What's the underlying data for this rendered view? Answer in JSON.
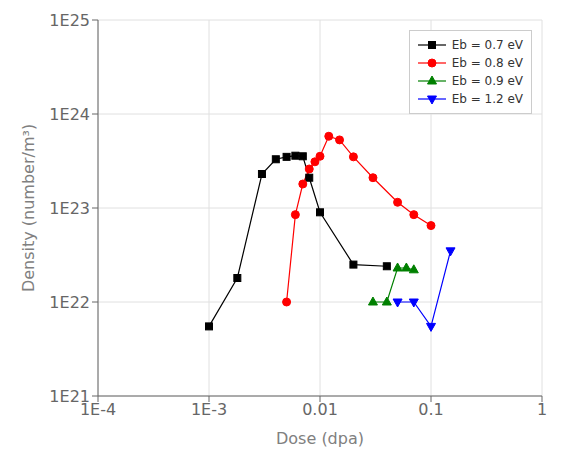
{
  "chart_data": {
    "type": "line",
    "xlabel": "Dose (dpa)",
    "ylabel": "Density (number/m³)",
    "log": true,
    "grid": true,
    "legend": "upper right",
    "xlim": [
      0.0001,
      1
    ],
    "ylim": [
      1e+21,
      1e+25
    ],
    "xticks": [
      {
        "value": 0.0001,
        "label": "1E-4"
      },
      {
        "value": 0.001,
        "label": "1E-3"
      },
      0.01,
      0.1,
      1
    ],
    "yticks": [
      {
        "value": 1e+21,
        "label": "1E21"
      },
      {
        "value": 1e+22,
        "label": "1E22"
      },
      {
        "value": 1e+23,
        "label": "1E23"
      },
      {
        "value": 1e+24,
        "label": "1E24"
      },
      {
        "value": 1e+25,
        "label": "1E25"
      }
    ],
    "series": [
      {
        "name": "Eb = 0.7 eV",
        "color": "black",
        "marker": "square",
        "x": [
          0.001,
          0.0018,
          0.003,
          0.004,
          0.005,
          0.006,
          0.007,
          0.008,
          0.01,
          0.02,
          0.04
        ],
        "values": [
          5.5e+21,
          1.8e+22,
          2.3e+23,
          3.3e+23,
          3.5e+23,
          3.6e+23,
          3.55e+23,
          2.1e+23,
          9e+22,
          2.5e+22,
          2.4e+22
        ]
      },
      {
        "name": "Eb = 0.8 eV",
        "color": "red",
        "marker": "circle",
        "x": [
          0.005,
          0.006,
          0.007,
          0.008,
          0.009,
          0.01,
          0.012,
          0.015,
          0.02,
          0.03,
          0.05,
          0.07,
          0.1
        ],
        "values": [
          1e+22,
          8.5e+22,
          1.8e+23,
          2.6e+23,
          3.1e+23,
          3.55e+23,
          5.8e+23,
          5.3e+23,
          3.5e+23,
          2.1e+23,
          1.15e+23,
          8.5e+22,
          6.5e+22
        ]
      },
      {
        "name": "Eb = 0.9 eV",
        "color": "green",
        "marker": "triangle-up",
        "x": [
          0.03,
          0.04,
          0.05,
          0.06,
          0.07
        ],
        "values": [
          1e+22,
          1e+22,
          2.3e+22,
          2.3e+22,
          2.2e+22
        ]
      },
      {
        "name": "Eb = 1.2 eV",
        "color": "blue",
        "marker": "triangle-down",
        "x": [
          0.05,
          0.07,
          0.1,
          0.15
        ],
        "values": [
          1e+22,
          1e+22,
          5.5e+21,
          3.5e+22
        ]
      }
    ]
  }
}
